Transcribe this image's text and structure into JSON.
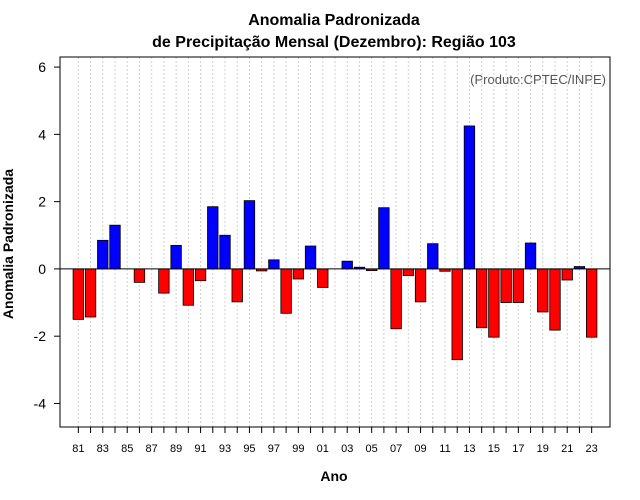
{
  "chart_data": {
    "type": "bar",
    "title": "Anomalia Padronizada",
    "subtitle": "de Precipitação Mensal (Dezembro): Região 103",
    "xlabel": "Ano",
    "ylabel": "Anomalia Padronizada",
    "annotation": "(Produto:CPTEC/INPE)",
    "ylim": [
      -4.7,
      6.3
    ],
    "yticks": [
      -4,
      -2,
      0,
      2,
      4,
      6
    ],
    "xlim": [
      1979.5,
      2024.5
    ],
    "xtick_labels": [
      "81",
      "83",
      "85",
      "87",
      "89",
      "91",
      "93",
      "95",
      "97",
      "99",
      "01",
      "03",
      "05",
      "07",
      "09",
      "11",
      "13",
      "15",
      "17",
      "19",
      "21",
      "23"
    ],
    "x": [
      1981,
      1982,
      1983,
      1984,
      1985,
      1986,
      1987,
      1988,
      1989,
      1990,
      1991,
      1992,
      1993,
      1994,
      1995,
      1996,
      1997,
      1998,
      1999,
      2000,
      2001,
      2002,
      2003,
      2004,
      2005,
      2006,
      2007,
      2008,
      2009,
      2010,
      2011,
      2012,
      2013,
      2014,
      2015,
      2016,
      2017,
      2018,
      2019,
      2020,
      2021,
      2022,
      2023
    ],
    "values": [
      -1.5,
      -1.43,
      0.85,
      1.3,
      0.0,
      -0.4,
      0.0,
      -0.72,
      0.7,
      -1.08,
      -0.35,
      1.85,
      1.0,
      -0.98,
      2.03,
      -0.06,
      0.27,
      -1.32,
      -0.3,
      0.68,
      -0.55,
      0.0,
      0.23,
      0.05,
      -0.05,
      1.82,
      -1.78,
      -0.2,
      -0.98,
      0.75,
      -0.07,
      -2.7,
      4.25,
      -1.75,
      -2.03,
      -1.0,
      -1.0,
      0.77,
      -1.28,
      -1.82,
      -0.33,
      0.07,
      -2.03
    ],
    "positive_color": "#0000ff",
    "negative_color": "#ff0000",
    "grid": true,
    "bar_edge_color": "#000000"
  }
}
